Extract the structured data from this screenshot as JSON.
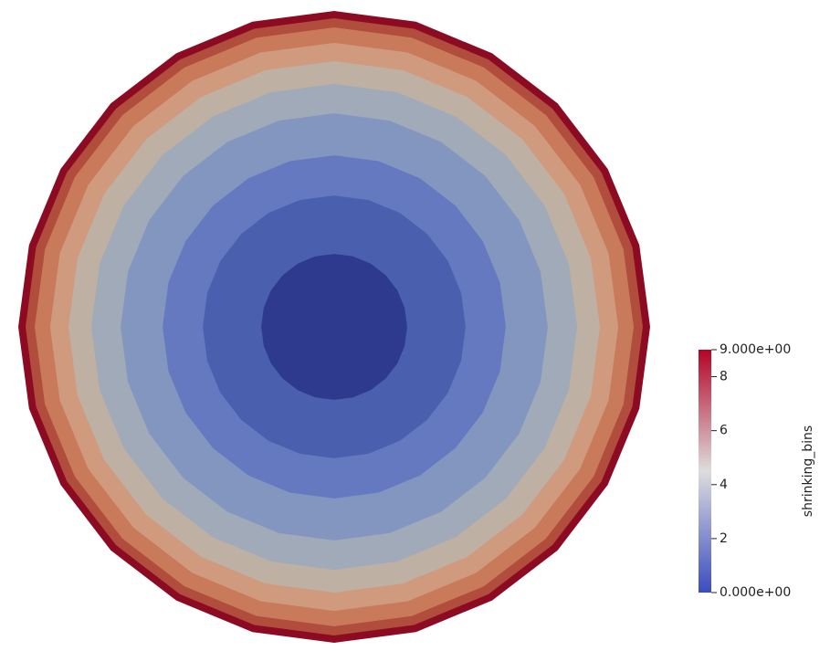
{
  "chart_data": {
    "type": "concentric-bands",
    "values": [
      0,
      1,
      2,
      3,
      4,
      5,
      6,
      7,
      8,
      9
    ],
    "radii": [
      0.231,
      0.416,
      0.543,
      0.676,
      0.769,
      0.841,
      0.899,
      0.948,
      0.977,
      1.0
    ],
    "colors": [
      "#2d3a8e",
      "#4a5fae",
      "#6479bf",
      "#8396bf",
      "#a0aab8",
      "#bfb0a4",
      "#d09a7e",
      "#c97a5a",
      "#b04d3c",
      "#8c0b22"
    ],
    "sides": 24,
    "colorbar": {
      "title": "shrinking_bins",
      "lim": [
        0,
        9
      ],
      "ticks": [
        {
          "value": 0,
          "label": "0.000e+00"
        },
        2,
        4,
        6,
        8,
        {
          "value": 9,
          "label": "9.000e+00"
        }
      ],
      "colormap": [
        "#3b4cc0",
        "#dddddd",
        "#b40426"
      ]
    }
  }
}
